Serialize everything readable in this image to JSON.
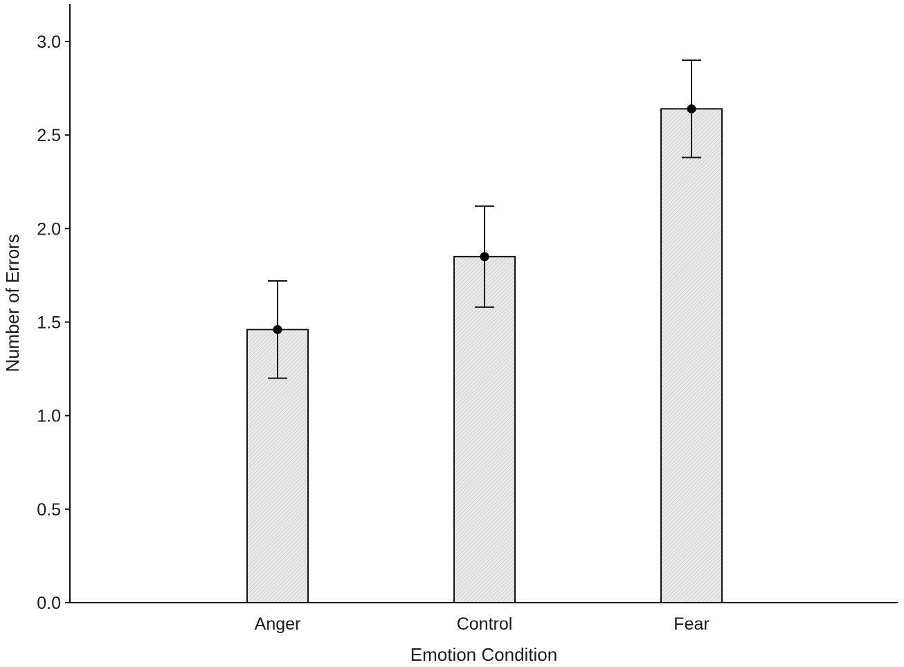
{
  "chart_data": {
    "type": "bar",
    "title": "",
    "xlabel": "Emotion Condition",
    "ylabel": "Number of Errors",
    "categories": [
      "Anger",
      "Control",
      "Fear"
    ],
    "values": [
      1.46,
      1.85,
      2.64
    ],
    "error_upper": [
      1.72,
      2.12,
      2.9
    ],
    "error_lower": [
      1.2,
      1.58,
      2.38
    ],
    "ylim": [
      0,
      3.2
    ],
    "yticks": [
      0.0,
      0.5,
      1.0,
      1.5,
      2.0,
      2.5,
      3.0
    ],
    "ytick_labels": [
      "0.0",
      "0.5",
      "1.0",
      "1.5",
      "2.0",
      "2.5",
      "3.0"
    ],
    "grid": false,
    "legend": "none",
    "bar_fill": "#e6e6e6",
    "bar_stroke": "#111111",
    "marker_color": "#000000"
  }
}
